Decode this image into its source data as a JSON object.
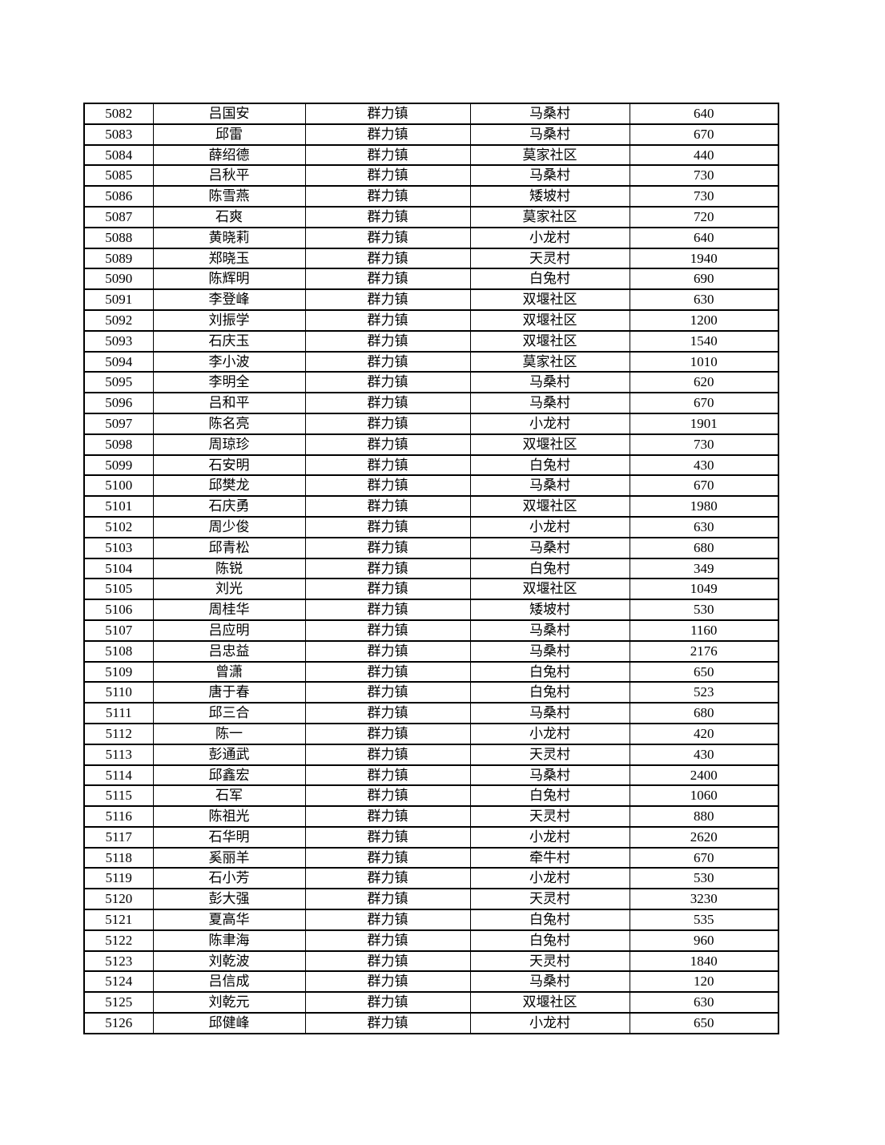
{
  "page": {
    "background_color": "#ffffff",
    "text_color": "#000000",
    "table_border_color": "#000000"
  },
  "table": {
    "rows": [
      [
        "5082",
        "吕国安",
        "群力镇",
        "马桑村",
        "640"
      ],
      [
        "5083",
        "邱雷",
        "群力镇",
        "马桑村",
        "670"
      ],
      [
        "5084",
        "薛绍德",
        "群力镇",
        "莫家社区",
        "440"
      ],
      [
        "5085",
        "吕秋平",
        "群力镇",
        "马桑村",
        "730"
      ],
      [
        "5086",
        "陈雪燕",
        "群力镇",
        "矮坡村",
        "730"
      ],
      [
        "5087",
        "石爽",
        "群力镇",
        "莫家社区",
        "720"
      ],
      [
        "5088",
        "黄晓莉",
        "群力镇",
        "小龙村",
        "640"
      ],
      [
        "5089",
        "郑晓玉",
        "群力镇",
        "天灵村",
        "1940"
      ],
      [
        "5090",
        "陈辉明",
        "群力镇",
        "白兔村",
        "690"
      ],
      [
        "5091",
        "李登峰",
        "群力镇",
        "双堰社区",
        "630"
      ],
      [
        "5092",
        "刘振学",
        "群力镇",
        "双堰社区",
        "1200"
      ],
      [
        "5093",
        "石庆玉",
        "群力镇",
        "双堰社区",
        "1540"
      ],
      [
        "5094",
        "李小波",
        "群力镇",
        "莫家社区",
        "1010"
      ],
      [
        "5095",
        "李明全",
        "群力镇",
        "马桑村",
        "620"
      ],
      [
        "5096",
        "吕和平",
        "群力镇",
        "马桑村",
        "670"
      ],
      [
        "5097",
        "陈名亮",
        "群力镇",
        "小龙村",
        "1901"
      ],
      [
        "5098",
        "周琼珍",
        "群力镇",
        "双堰社区",
        "730"
      ],
      [
        "5099",
        "石安明",
        "群力镇",
        "白兔村",
        "430"
      ],
      [
        "5100",
        "邱樊龙",
        "群力镇",
        "马桑村",
        "670"
      ],
      [
        "5101",
        "石庆勇",
        "群力镇",
        "双堰社区",
        "1980"
      ],
      [
        "5102",
        "周少俊",
        "群力镇",
        "小龙村",
        "630"
      ],
      [
        "5103",
        "邱青松",
        "群力镇",
        "马桑村",
        "680"
      ],
      [
        "5104",
        "陈锐",
        "群力镇",
        "白兔村",
        "349"
      ],
      [
        "5105",
        "刘光",
        "群力镇",
        "双堰社区",
        "1049"
      ],
      [
        "5106",
        "周桂华",
        "群力镇",
        "矮坡村",
        "530"
      ],
      [
        "5107",
        "吕应明",
        "群力镇",
        "马桑村",
        "1160"
      ],
      [
        "5108",
        "吕忠益",
        "群力镇",
        "马桑村",
        "2176"
      ],
      [
        "5109",
        "曾潇",
        "群力镇",
        "白兔村",
        "650"
      ],
      [
        "5110",
        "唐于春",
        "群力镇",
        "白兔村",
        "523"
      ],
      [
        "5111",
        "邱三合",
        "群力镇",
        "马桑村",
        "680"
      ],
      [
        "5112",
        "陈一",
        "群力镇",
        "小龙村",
        "420"
      ],
      [
        "5113",
        "彭通武",
        "群力镇",
        "天灵村",
        "430"
      ],
      [
        "5114",
        "邱鑫宏",
        "群力镇",
        "马桑村",
        "2400"
      ],
      [
        "5115",
        "石军",
        "群力镇",
        "白兔村",
        "1060"
      ],
      [
        "5116",
        "陈祖光",
        "群力镇",
        "天灵村",
        "880"
      ],
      [
        "5117",
        "石华明",
        "群力镇",
        "小龙村",
        "2620"
      ],
      [
        "5118",
        "奚丽羊",
        "群力镇",
        "牵牛村",
        "670"
      ],
      [
        "5119",
        "石小芳",
        "群力镇",
        "小龙村",
        "530"
      ],
      [
        "5120",
        "彭大强",
        "群力镇",
        "天灵村",
        "3230"
      ],
      [
        "5121",
        "夏高华",
        "群力镇",
        "白兔村",
        "535"
      ],
      [
        "5122",
        "陈聿海",
        "群力镇",
        "白兔村",
        "960"
      ],
      [
        "5123",
        "刘乾波",
        "群力镇",
        "天灵村",
        "1840"
      ],
      [
        "5124",
        "吕信成",
        "群力镇",
        "马桑村",
        "120"
      ],
      [
        "5125",
        "刘乾元",
        "群力镇",
        "双堰社区",
        "630"
      ],
      [
        "5126",
        "邱健峰",
        "群力镇",
        "小龙村",
        "650"
      ]
    ]
  }
}
